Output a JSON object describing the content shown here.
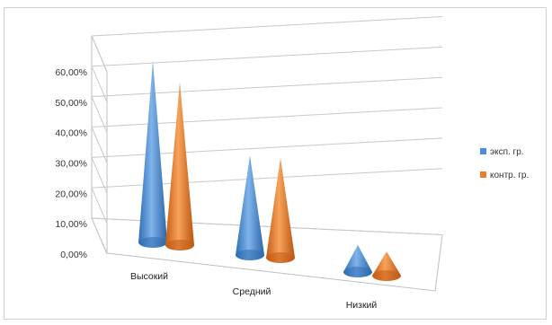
{
  "chart_data": {
    "type": "bar",
    "subtype": "3d-cone",
    "title": "",
    "xlabel": "",
    "ylabel": "",
    "categories": [
      "Высокий",
      "Средний",
      "Низкий"
    ],
    "series": [
      {
        "name": "эксп. гр.",
        "values": [
          60,
          33,
          9
        ],
        "color": "#4a8ed6"
      },
      {
        "name": "контр. гр.",
        "values": [
          54,
          33,
          8
        ],
        "color": "#ea7d2a"
      }
    ],
    "y_ticks": [
      "0,00%",
      "10,00%",
      "20,00%",
      "30,00%",
      "40,00%",
      "50,00%",
      "60,00%"
    ],
    "ylim": [
      0,
      60
    ],
    "grid": true,
    "legend_position": "right"
  }
}
